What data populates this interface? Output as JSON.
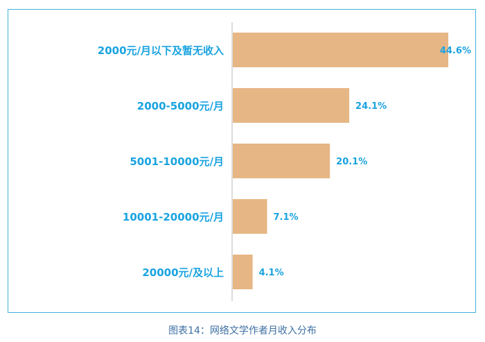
{
  "chart_data": {
    "type": "bar",
    "orientation": "horizontal",
    "title": "",
    "categories": [
      "2000元/月以下及暂无收入",
      "2000-5000元/月",
      "5001-10000元/月",
      "10001-20000元/月",
      "20000元/及以上"
    ],
    "values": [
      44.6,
      24.1,
      20.1,
      7.1,
      4.1
    ],
    "data_labels": [
      "44.6%",
      "24.1%",
      "20.1%",
      "7.1%",
      "4.1%"
    ],
    "xlim": [
      0,
      44.6
    ],
    "grid": false,
    "legend": "none",
    "colors": {
      "bar": "#e6b685",
      "label": "#1aa3e0",
      "axis": "#d0d0d0",
      "frame": "#3fb0d9"
    }
  },
  "caption": "图表14：网络文学作者月收入分布"
}
